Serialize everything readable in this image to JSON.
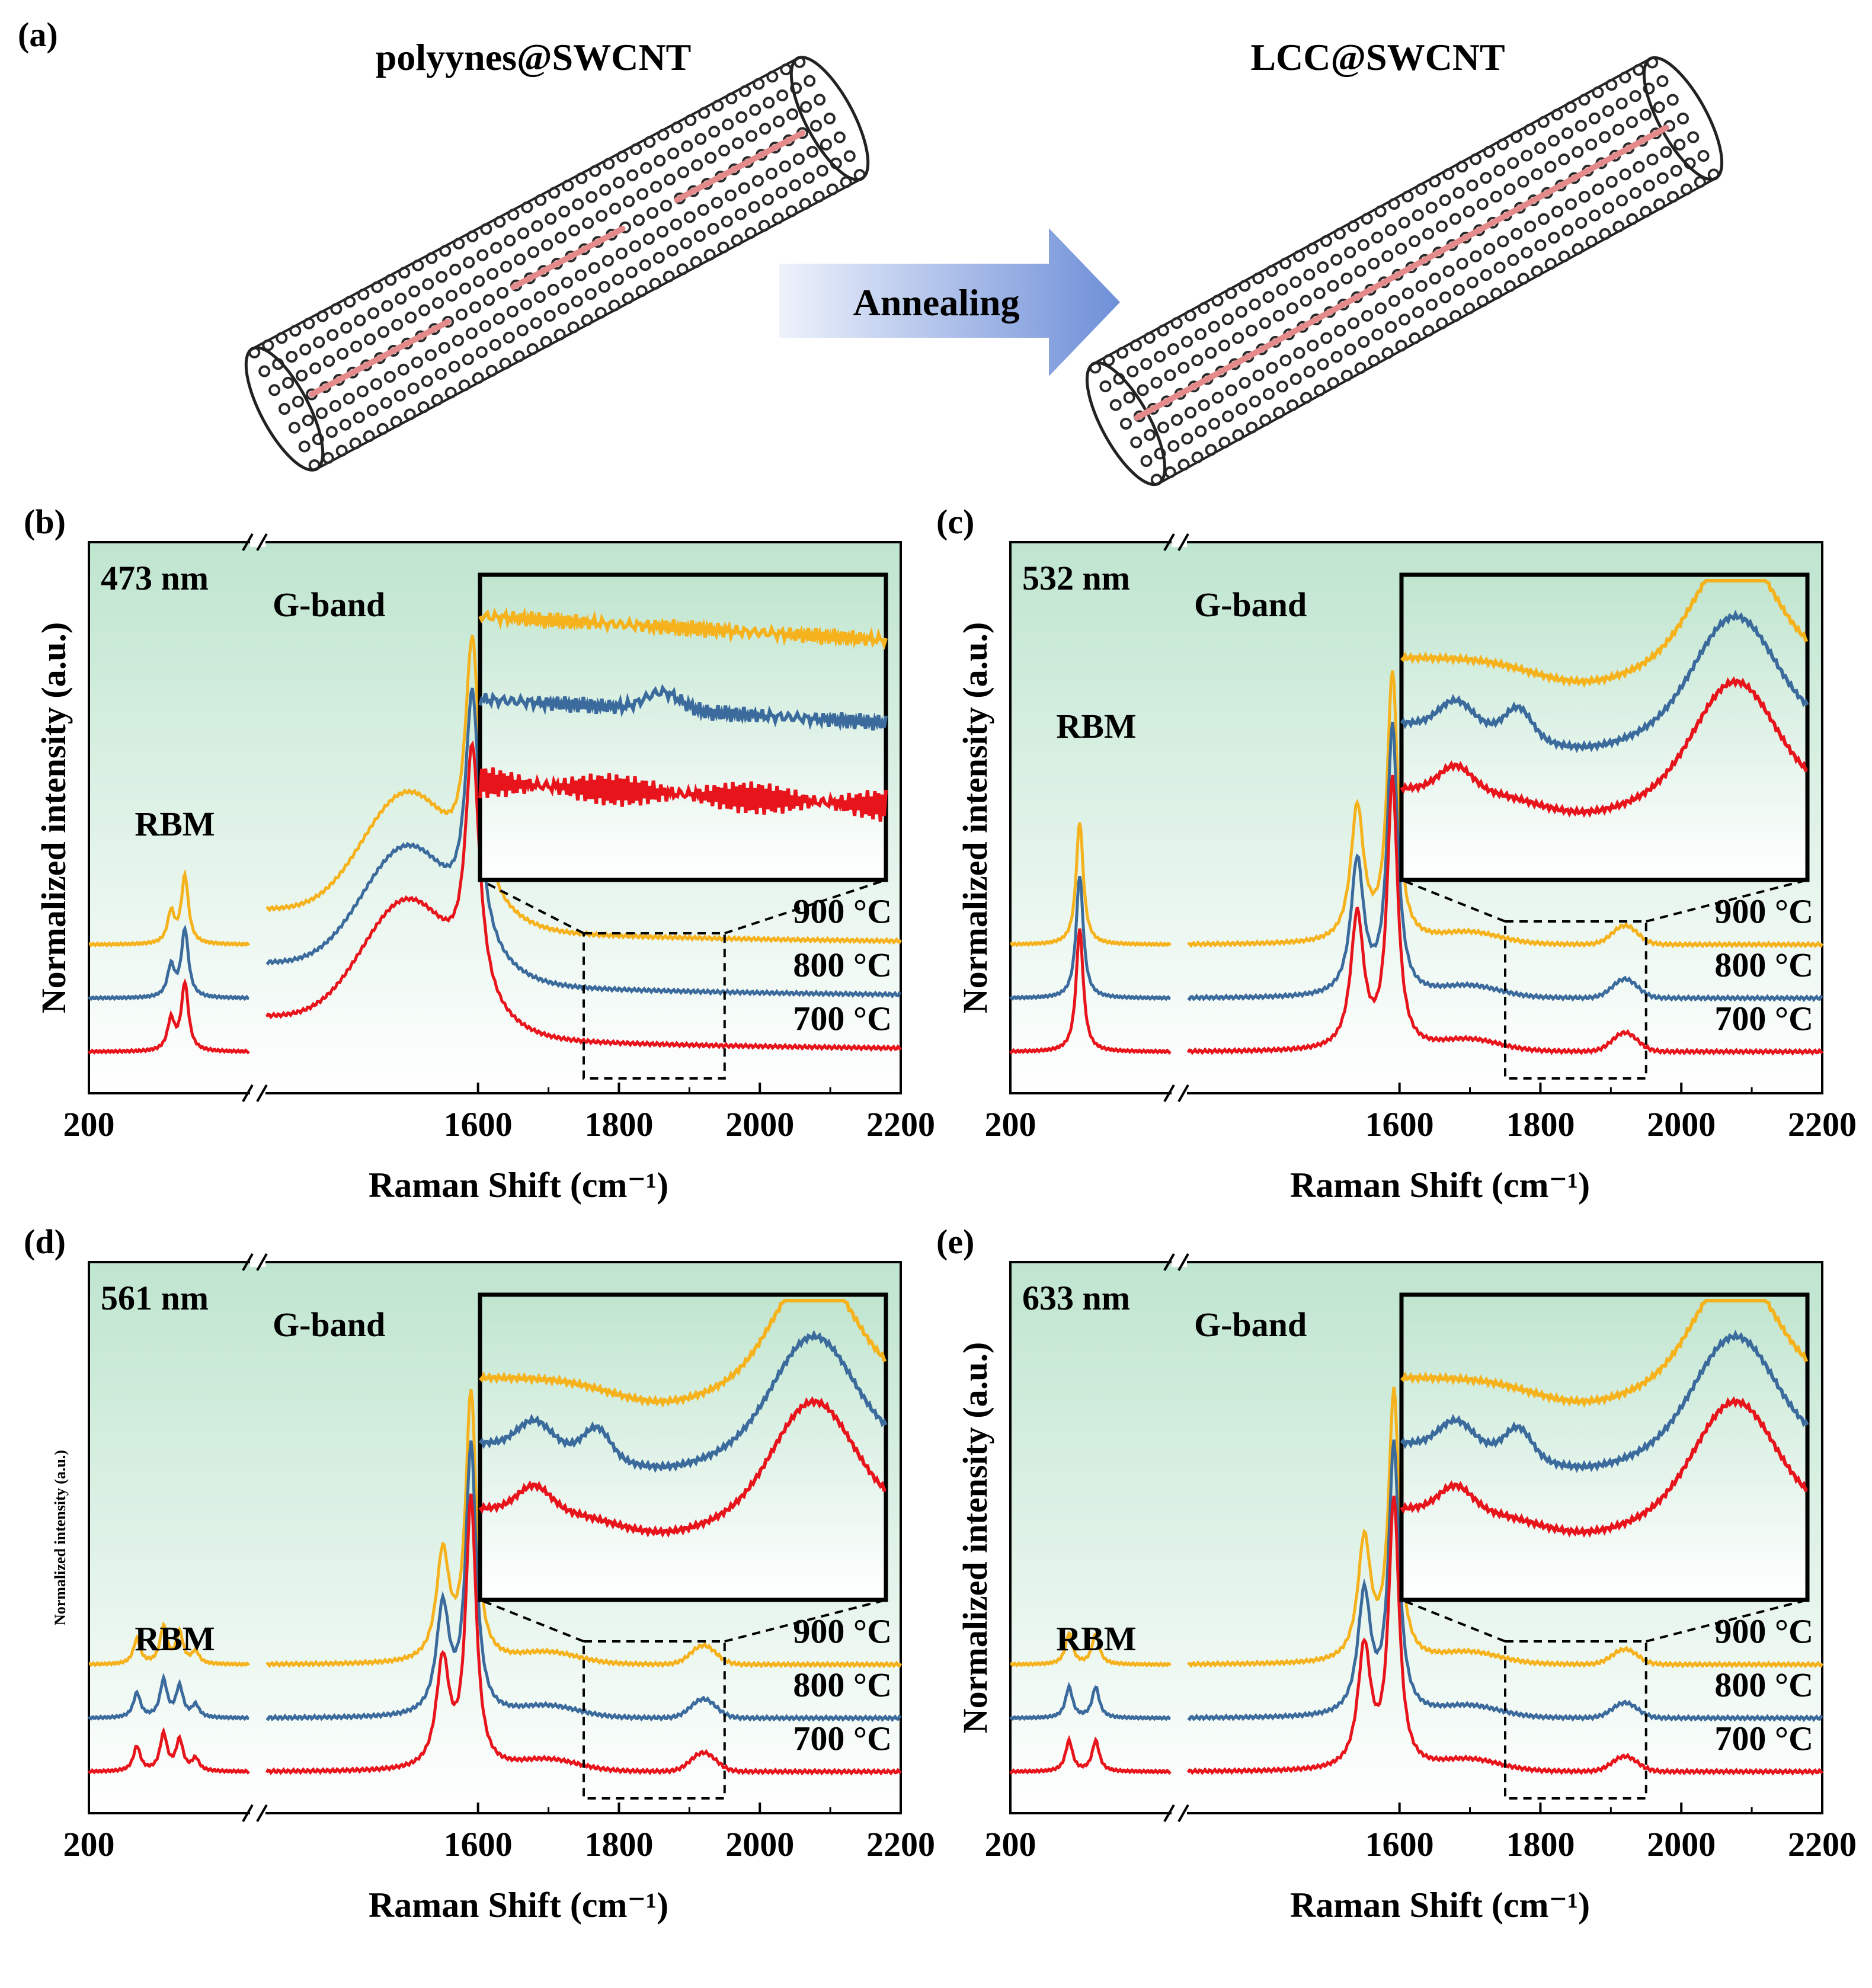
{
  "figure": {
    "panel_a": {
      "label": "(a)",
      "left_title": "polyynes@SWCNT",
      "right_title": "LCC@SWCNT",
      "arrow_label": "Annealing"
    },
    "ylabel_default": "Normalized intensity (a.u.)",
    "xlabel": "Raman Shift (cm⁻¹)",
    "temps": [
      "900 °C",
      "800 °C",
      "700 °C"
    ],
    "colors": {
      "t900": "#F5B21C",
      "t800": "#3B6A9C",
      "t700": "#E8141B",
      "bg_top": "#BFE5CF",
      "bg_bottom": "#FFFFFF"
    }
  },
  "chart_data": [
    {
      "panel": "(b)",
      "type": "line",
      "wavelength": "473 nm",
      "xlabel": "Raman Shift (cm⁻¹)",
      "ylabel": "Normalized intensity (a.u.)",
      "x_ticks": [
        "200",
        "1600",
        "1800",
        "2000",
        "2200"
      ],
      "xlim_rbm": [
        200,
        350
      ],
      "xlim_main": [
        1300,
        2200
      ],
      "annotations": [
        "RBM",
        "G-band"
      ],
      "inset_range": [
        1750,
        1950
      ],
      "series": [
        {
          "name": "900 °C",
          "rbm_peaks": [
            [
              277,
              0.25
            ],
            [
              290,
              0.55
            ]
          ],
          "g_peaks": [
            [
              1592,
              1.0
            ],
            [
              1540,
              0.45
            ],
            [
              1480,
              0.35
            ]
          ],
          "lcc_peak": null,
          "baseline": 0.8
        },
        {
          "name": "800 °C",
          "rbm_peaks": [
            [
              277,
              0.25
            ],
            [
              290,
              0.55
            ]
          ],
          "g_peaks": [
            [
              1592,
              1.0
            ],
            [
              1540,
              0.45
            ],
            [
              1480,
              0.35
            ]
          ],
          "lcc_peak": null,
          "baseline": 0.4
        },
        {
          "name": "700 °C",
          "rbm_peaks": [
            [
              277,
              0.25
            ],
            [
              290,
              0.55
            ]
          ],
          "g_peaks": [
            [
              1592,
              1.0
            ],
            [
              1540,
              0.45
            ],
            [
              1480,
              0.35
            ]
          ],
          "lcc_peak": null,
          "baseline": 0.0
        }
      ]
    },
    {
      "panel": "(c)",
      "type": "line",
      "wavelength": "532 nm",
      "xlabel": "Raman Shift (cm⁻¹)",
      "ylabel": "Normalized intensity (a.u.)",
      "x_ticks": [
        "200",
        "1600",
        "1800",
        "2000",
        "2200"
      ],
      "xlim_rbm": [
        200,
        350
      ],
      "xlim_main": [
        1300,
        2200
      ],
      "annotations": [
        "RBM",
        "G-band"
      ],
      "inset_range": [
        1750,
        1950
      ],
      "series": [
        {
          "name": "900 °C",
          "rbm_peaks": [
            [
              265,
              1.0
            ]
          ],
          "g_peaks": [
            [
              1590,
              1.0
            ],
            [
              1540,
              0.5
            ]
          ],
          "lcc_peak": [
            1920,
            0.1
          ],
          "baseline": 0.8
        },
        {
          "name": "800 °C",
          "rbm_peaks": [
            [
              265,
              1.0
            ]
          ],
          "g_peaks": [
            [
              1590,
              1.0
            ],
            [
              1540,
              0.5
            ]
          ],
          "lcc_peak": [
            1920,
            0.1
          ],
          "baseline": 0.4
        },
        {
          "name": "700 °C",
          "rbm_peaks": [
            [
              265,
              1.0
            ]
          ],
          "g_peaks": [
            [
              1590,
              1.0
            ],
            [
              1540,
              0.5
            ]
          ],
          "lcc_peak": [
            1920,
            0.1
          ],
          "baseline": 0.0
        }
      ]
    },
    {
      "panel": "(d)",
      "type": "line",
      "wavelength": "561 nm",
      "xlabel": "Raman Shift (cm⁻¹)",
      "ylabel": "Normalized intensity (a.u.)",
      "x_ticks": [
        "200",
        "1600",
        "1800",
        "2000",
        "2200"
      ],
      "xlim_rbm": [
        200,
        350
      ],
      "xlim_main": [
        1300,
        2200
      ],
      "annotations": [
        "RBM",
        "G-band"
      ],
      "inset_range": [
        1750,
        1950
      ],
      "series": [
        {
          "name": "900 °C",
          "rbm_peaks": [
            [
              245,
              0.2
            ],
            [
              270,
              0.3
            ],
            [
              285,
              0.25
            ],
            [
              300,
              0.1
            ]
          ],
          "g_peaks": [
            [
              1590,
              1.0
            ],
            [
              1550,
              0.4
            ]
          ],
          "lcc_peak": [
            1920,
            0.1
          ],
          "baseline": 0.8
        },
        {
          "name": "800 °C",
          "rbm_peaks": [
            [
              245,
              0.2
            ],
            [
              270,
              0.3
            ],
            [
              285,
              0.25
            ],
            [
              300,
              0.1
            ]
          ],
          "g_peaks": [
            [
              1590,
              1.0
            ],
            [
              1550,
              0.4
            ]
          ],
          "lcc_peak": [
            1920,
            0.1
          ],
          "baseline": 0.4
        },
        {
          "name": "700 °C",
          "rbm_peaks": [
            [
              245,
              0.2
            ],
            [
              270,
              0.3
            ],
            [
              285,
              0.25
            ],
            [
              300,
              0.1
            ]
          ],
          "g_peaks": [
            [
              1590,
              1.0
            ],
            [
              1550,
              0.4
            ]
          ],
          "lcc_peak": [
            1920,
            0.1
          ],
          "baseline": 0.0
        }
      ]
    },
    {
      "panel": "(e)",
      "type": "line",
      "wavelength": "633 nm",
      "xlabel": "Raman Shift (cm⁻¹)",
      "ylabel": "Normalized intensity (a.u.)",
      "x_ticks": [
        "200",
        "1600",
        "1800",
        "2000",
        "2200"
      ],
      "xlim_rbm": [
        200,
        350
      ],
      "xlim_main": [
        1300,
        2200
      ],
      "annotations": [
        "RBM",
        "G-band"
      ],
      "inset_range": [
        1750,
        1950
      ],
      "series": [
        {
          "name": "900 °C",
          "rbm_peaks": [
            [
              255,
              0.25
            ],
            [
              280,
              0.25
            ]
          ],
          "g_peaks": [
            [
              1592,
              1.0
            ],
            [
              1550,
              0.45
            ]
          ],
          "lcc_peak": [
            1920,
            0.08
          ],
          "baseline": 0.8
        },
        {
          "name": "800 °C",
          "rbm_peaks": [
            [
              255,
              0.25
            ],
            [
              280,
              0.25
            ]
          ],
          "g_peaks": [
            [
              1592,
              1.0
            ],
            [
              1550,
              0.45
            ]
          ],
          "lcc_peak": [
            1920,
            0.08
          ],
          "baseline": 0.4
        },
        {
          "name": "700 °C",
          "rbm_peaks": [
            [
              255,
              0.25
            ],
            [
              280,
              0.25
            ]
          ],
          "g_peaks": [
            [
              1592,
              1.0
            ],
            [
              1550,
              0.45
            ]
          ],
          "lcc_peak": [
            1920,
            0.08
          ],
          "baseline": 0.0
        }
      ]
    }
  ]
}
